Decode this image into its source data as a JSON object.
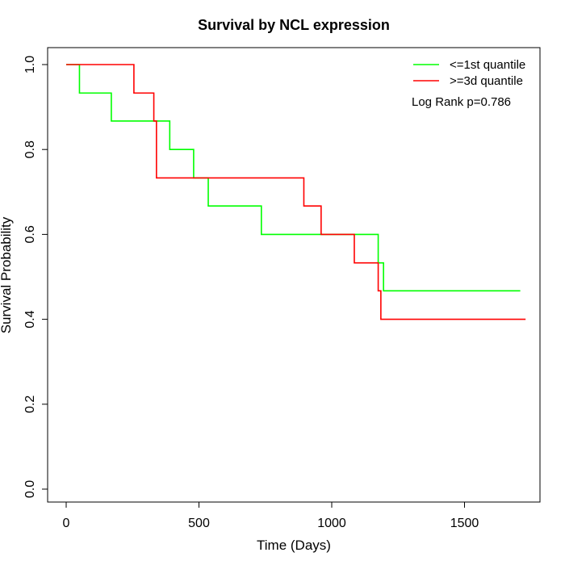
{
  "chart_data": {
    "type": "line",
    "title": "Survival by NCL expression",
    "xlabel": "Time (Days)",
    "ylabel": "Survival Probability",
    "xlim": [
      0,
      1730
    ],
    "ylim": [
      0,
      1.0
    ],
    "x_ticks": [
      0,
      500,
      1000,
      1500
    ],
    "y_ticks": [
      0.0,
      0.2,
      0.4,
      0.6,
      0.8,
      1.0
    ],
    "x_tick_labels": [
      "0",
      "500",
      "1000",
      "1500"
    ],
    "y_tick_labels": [
      "0.0",
      "0.2",
      "0.4",
      "0.6",
      "0.8",
      "1.0"
    ],
    "grid": false,
    "legend_position": "top-right",
    "annotation": "Log Rank p=0.786",
    "series": [
      {
        "name": "<=1st quantile",
        "color": "#00ff00",
        "step": true,
        "x": [
          0,
          50,
          170,
          390,
          480,
          535,
          735,
          1175,
          1195,
          1710
        ],
        "y": [
          1.0,
          0.933,
          0.867,
          0.8,
          0.733,
          0.667,
          0.6,
          0.533,
          0.467,
          0.467
        ]
      },
      {
        "name": ">=3d quantile",
        "color": "#ff0000",
        "step": true,
        "x": [
          0,
          255,
          330,
          340,
          895,
          960,
          1085,
          1175,
          1185,
          1730
        ],
        "y": [
          1.0,
          0.933,
          0.867,
          0.733,
          0.667,
          0.6,
          0.533,
          0.467,
          0.4,
          0.4
        ]
      }
    ]
  }
}
